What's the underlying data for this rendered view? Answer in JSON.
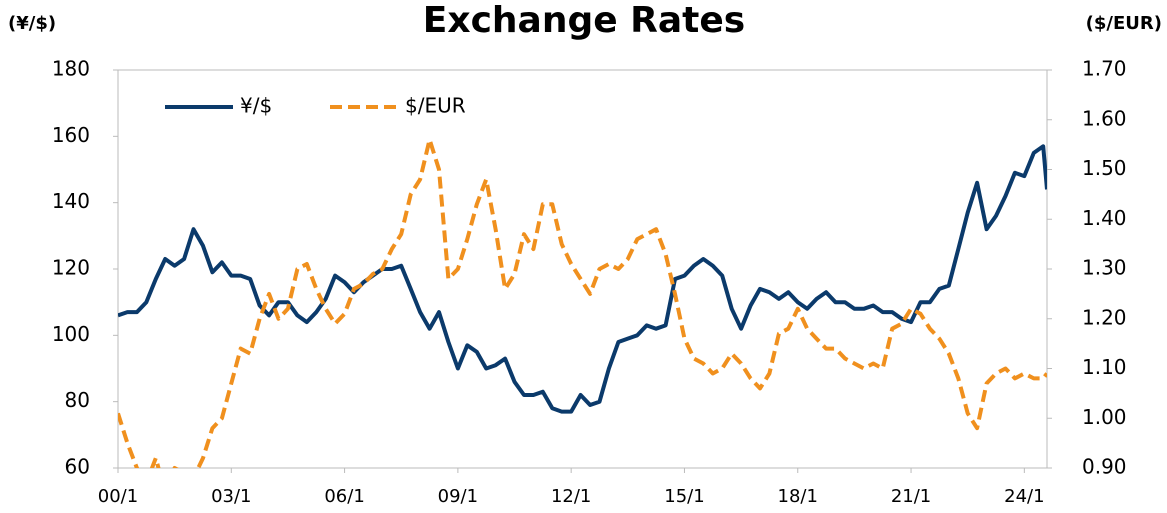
{
  "chart_data": {
    "type": "line",
    "title": "Exchange Rates",
    "y_label": "(¥/$)",
    "y2_label": "($/EUR)",
    "x": [
      2000,
      2000.25,
      2000.5,
      2000.75,
      2001,
      2001.25,
      2001.5,
      2001.75,
      2002,
      2002.25,
      2002.5,
      2002.75,
      2003,
      2003.25,
      2003.5,
      2003.75,
      2004,
      2004.25,
      2004.5,
      2004.75,
      2005,
      2005.25,
      2005.5,
      2005.75,
      2006,
      2006.25,
      2006.5,
      2006.75,
      2007,
      2007.25,
      2007.5,
      2007.75,
      2008,
      2008.25,
      2008.5,
      2008.75,
      2009,
      2009.25,
      2009.5,
      2009.75,
      2010,
      2010.25,
      2010.5,
      2010.75,
      2011,
      2011.25,
      2011.5,
      2011.75,
      2012,
      2012.25,
      2012.5,
      2012.75,
      2013,
      2013.25,
      2013.5,
      2013.75,
      2014,
      2014.25,
      2014.5,
      2014.75,
      2015,
      2015.25,
      2015.5,
      2015.75,
      2016,
      2016.25,
      2016.5,
      2016.75,
      2017,
      2017.25,
      2017.5,
      2017.75,
      2018,
      2018.25,
      2018.5,
      2018.75,
      2019,
      2019.25,
      2019.5,
      2019.75,
      2020,
      2020.25,
      2020.5,
      2020.75,
      2021,
      2021.25,
      2021.5,
      2021.75,
      2022,
      2022.25,
      2022.5,
      2022.75,
      2023,
      2023.25,
      2023.5,
      2023.75,
      2024,
      2024.25,
      2024.5,
      2024.6
    ],
    "series": [
      {
        "name": "¥/$",
        "color": "#0b3a6b",
        "dashed": false,
        "values": [
          106,
          107,
          107,
          110,
          117,
          123,
          121,
          123,
          132,
          127,
          119,
          122,
          118,
          118,
          117,
          109,
          106,
          110,
          110,
          106,
          104,
          107,
          111,
          118,
          116,
          113,
          116,
          118,
          120,
          120,
          121,
          114,
          107,
          102,
          107,
          98,
          90,
          97,
          95,
          90,
          91,
          93,
          86,
          82,
          82,
          83,
          78,
          77,
          77,
          82,
          79,
          80,
          90,
          98,
          99,
          100,
          103,
          102,
          103,
          117,
          118,
          121,
          123,
          121,
          118,
          108,
          102,
          109,
          114,
          113,
          111,
          113,
          110,
          108,
          111,
          113,
          110,
          110,
          108,
          108,
          109,
          107,
          107,
          105,
          104,
          110,
          110,
          114,
          115,
          126,
          137,
          146,
          132,
          136,
          142,
          149,
          148,
          155,
          157,
          144
        ]
      },
      {
        "name": "$/EUR",
        "color": "#f0901e",
        "dashed": true,
        "axis": "y2",
        "values": [
          1.01,
          0.95,
          0.9,
          0.87,
          0.92,
          0.85,
          0.9,
          0.89,
          0.88,
          0.92,
          0.98,
          1.0,
          1.07,
          1.14,
          1.13,
          1.2,
          1.25,
          1.2,
          1.22,
          1.3,
          1.31,
          1.26,
          1.22,
          1.19,
          1.21,
          1.26,
          1.27,
          1.29,
          1.3,
          1.34,
          1.37,
          1.45,
          1.48,
          1.56,
          1.5,
          1.28,
          1.3,
          1.36,
          1.43,
          1.48,
          1.38,
          1.26,
          1.29,
          1.37,
          1.34,
          1.43,
          1.43,
          1.35,
          1.31,
          1.28,
          1.25,
          1.3,
          1.31,
          1.3,
          1.32,
          1.36,
          1.37,
          1.38,
          1.33,
          1.25,
          1.16,
          1.12,
          1.11,
          1.09,
          1.1,
          1.13,
          1.11,
          1.08,
          1.06,
          1.09,
          1.17,
          1.18,
          1.22,
          1.18,
          1.16,
          1.14,
          1.14,
          1.12,
          1.11,
          1.1,
          1.11,
          1.1,
          1.18,
          1.19,
          1.22,
          1.21,
          1.18,
          1.16,
          1.13,
          1.08,
          1.01,
          0.98,
          1.07,
          1.09,
          1.1,
          1.08,
          1.09,
          1.08,
          1.08,
          1.09
        ]
      }
    ],
    "xlim": [
      2000,
      2024.6
    ],
    "xticks": [
      {
        "value": 2000,
        "label": "00/1"
      },
      {
        "value": 2003,
        "label": "03/1"
      },
      {
        "value": 2006,
        "label": "06/1"
      },
      {
        "value": 2009,
        "label": "09/1"
      },
      {
        "value": 2012,
        "label": "12/1"
      },
      {
        "value": 2015,
        "label": "15/1"
      },
      {
        "value": 2018,
        "label": "18/1"
      },
      {
        "value": 2021,
        "label": "21/1"
      },
      {
        "value": 2024,
        "label": "24/1"
      }
    ],
    "ylim": [
      60,
      180
    ],
    "yticks": [
      60,
      80,
      100,
      120,
      140,
      160,
      180
    ],
    "y2lim": [
      0.9,
      1.7
    ],
    "y2ticks": [
      {
        "value": 0.9,
        "label": "0.90"
      },
      {
        "value": 1.0,
        "label": "1.00"
      },
      {
        "value": 1.1,
        "label": "1.10"
      },
      {
        "value": 1.2,
        "label": "1.20"
      },
      {
        "value": 1.3,
        "label": "1.30"
      },
      {
        "value": 1.4,
        "label": "1.40"
      },
      {
        "value": 1.5,
        "label": "1.50"
      },
      {
        "value": 1.6,
        "label": "1.60"
      },
      {
        "value": 1.7,
        "label": "1.70"
      }
    ],
    "legend": "top-left"
  }
}
